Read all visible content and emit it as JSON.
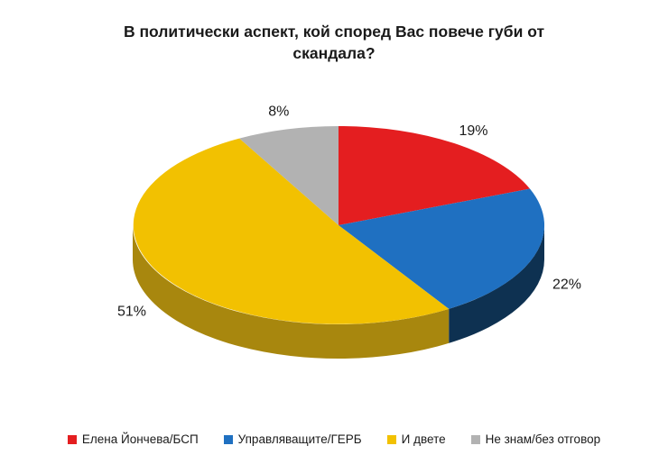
{
  "chart_data": {
    "type": "pie",
    "title": "В политически аспект, кой според Вас повече губи от скандала?",
    "labels": [
      "Елена Йончева/БСП",
      "Управляващите/ГЕРБ",
      "И двете",
      "Не знам/без отговор"
    ],
    "values": [
      19,
      22,
      51,
      8
    ],
    "value_labels": [
      "19%",
      "22%",
      "51%",
      "8%"
    ],
    "colors": [
      "#e41e20",
      "#1f70c1",
      "#f2c101",
      "#b2b2b2"
    ],
    "side_colors": [
      "#8f1114",
      "#0e3151",
      "#a8870e",
      "#7d7d7d"
    ],
    "start_angle_deg": 0,
    "direction": "clockwise",
    "effect": "3d",
    "legend_position": "bottom",
    "background": "#ffffff"
  }
}
